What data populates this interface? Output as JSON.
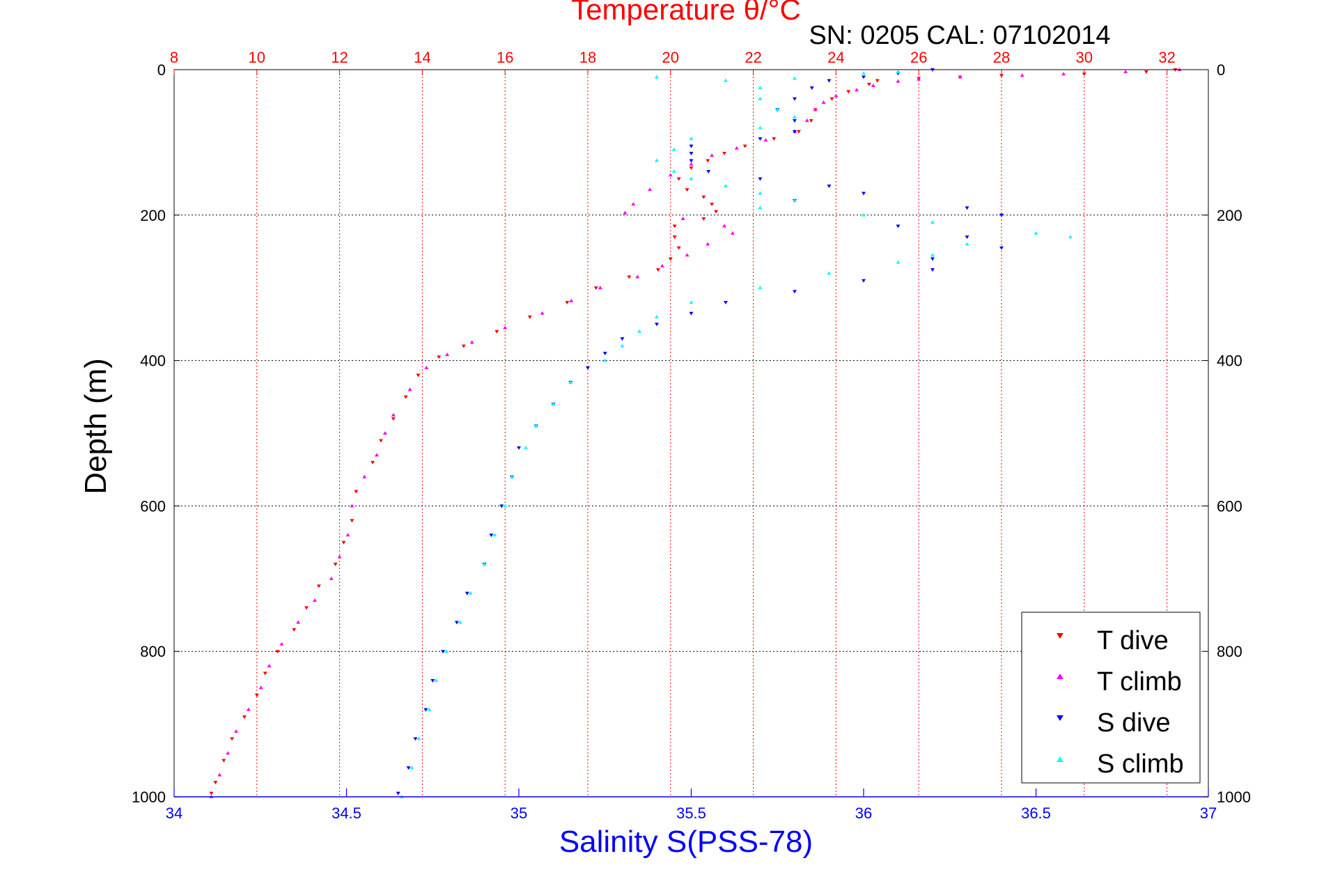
{
  "chart_data": {
    "type": "scatter",
    "title": "Temperature θ/°C",
    "subtitle": "SN: 0205  CAL: 07102014",
    "ylabel": "Depth (m)",
    "xlabel": "Salinity S(PSS-78)",
    "ylim": [
      0,
      1000
    ],
    "y_inverted": true,
    "y_ticks": [
      0,
      200,
      400,
      600,
      800,
      1000
    ],
    "temperature_axis": {
      "lim": [
        8,
        33
      ],
      "ticks": [
        8,
        10,
        12,
        14,
        16,
        18,
        20,
        22,
        24,
        26,
        28,
        30,
        32
      ],
      "grid": true,
      "color": "#ff0000"
    },
    "salinity_axis": {
      "lim": [
        34,
        37
      ],
      "ticks": [
        34,
        34.5,
        35,
        35.5,
        36,
        36.5,
        37
      ],
      "tick_labels": [
        "34",
        "34.5",
        "35",
        "35.5",
        "36",
        "36.5",
        "37"
      ],
      "color": "#0000ff"
    },
    "grid": true,
    "legend_position": "bottom-right",
    "series": [
      {
        "name": "T dive",
        "axis": "temperature",
        "color": "#ff0000",
        "marker": "down-triangle",
        "points": [
          [
            32.2,
            0
          ],
          [
            31.5,
            3
          ],
          [
            30,
            6
          ],
          [
            28,
            8
          ],
          [
            27,
            10
          ],
          [
            26,
            12
          ],
          [
            25,
            15
          ],
          [
            24.8,
            20
          ],
          [
            24.3,
            30
          ],
          [
            23.9,
            40
          ],
          [
            23.5,
            55
          ],
          [
            23.4,
            70
          ],
          [
            23.1,
            85
          ],
          [
            22.5,
            95
          ],
          [
            21.8,
            105
          ],
          [
            21.3,
            115
          ],
          [
            20.9,
            125
          ],
          [
            20.5,
            135
          ],
          [
            20.2,
            150
          ],
          [
            20.4,
            165
          ],
          [
            20.8,
            175
          ],
          [
            21.0,
            185
          ],
          [
            21.1,
            195
          ],
          [
            20.8,
            205
          ],
          [
            20.1,
            215
          ],
          [
            20.1,
            230
          ],
          [
            20.2,
            245
          ],
          [
            20.0,
            260
          ],
          [
            19.7,
            275
          ],
          [
            19,
            285
          ],
          [
            18.2,
            300
          ],
          [
            17.5,
            320
          ],
          [
            16.6,
            340
          ],
          [
            15.8,
            360
          ],
          [
            15.0,
            380
          ],
          [
            14.4,
            395
          ],
          [
            13.9,
            420
          ],
          [
            13.6,
            450
          ],
          [
            13.3,
            480
          ],
          [
            13.0,
            510
          ],
          [
            12.8,
            540
          ],
          [
            12.4,
            580
          ],
          [
            12.3,
            620
          ],
          [
            12.1,
            650
          ],
          [
            11.9,
            680
          ],
          [
            11.5,
            710
          ],
          [
            11.2,
            740
          ],
          [
            10.9,
            770
          ],
          [
            10.5,
            800
          ],
          [
            10.2,
            830
          ],
          [
            10.0,
            860
          ],
          [
            9.7,
            890
          ],
          [
            9.4,
            920
          ],
          [
            9.2,
            950
          ],
          [
            9.0,
            980
          ],
          [
            8.9,
            995
          ]
        ]
      },
      {
        "name": "T climb",
        "axis": "temperature",
        "color": "#ff00ff",
        "marker": "up-triangle",
        "points": [
          [
            32.3,
            0
          ],
          [
            31.0,
            3
          ],
          [
            29.5,
            6
          ],
          [
            28.5,
            8
          ],
          [
            27,
            10
          ],
          [
            26,
            13
          ],
          [
            25.5,
            16
          ],
          [
            24.9,
            22
          ],
          [
            24.5,
            28
          ],
          [
            24.0,
            36
          ],
          [
            23.7,
            45
          ],
          [
            23.5,
            55
          ],
          [
            23.3,
            70
          ],
          [
            23.0,
            85
          ],
          [
            22.3,
            97
          ],
          [
            21.6,
            108
          ],
          [
            21.0,
            118
          ],
          [
            20.5,
            130
          ],
          [
            20.0,
            145
          ],
          [
            19.5,
            165
          ],
          [
            19.1,
            185
          ],
          [
            18.9,
            197
          ],
          [
            20.3,
            205
          ],
          [
            21.3,
            215
          ],
          [
            21.5,
            225
          ],
          [
            20.9,
            240
          ],
          [
            20.4,
            255
          ],
          [
            19.8,
            270
          ],
          [
            19.2,
            285
          ],
          [
            18.3,
            300
          ],
          [
            17.6,
            318
          ],
          [
            16.9,
            335
          ],
          [
            16.0,
            355
          ],
          [
            15.2,
            375
          ],
          [
            14.6,
            392
          ],
          [
            14.1,
            410
          ],
          [
            13.7,
            440
          ],
          [
            13.3,
            475
          ],
          [
            13.1,
            500
          ],
          [
            12.9,
            530
          ],
          [
            12.6,
            560
          ],
          [
            12.3,
            600
          ],
          [
            12.2,
            640
          ],
          [
            12.0,
            670
          ],
          [
            11.8,
            700
          ],
          [
            11.4,
            730
          ],
          [
            11.0,
            760
          ],
          [
            10.6,
            790
          ],
          [
            10.3,
            820
          ],
          [
            10.1,
            850
          ],
          [
            9.8,
            880
          ],
          [
            9.5,
            910
          ],
          [
            9.3,
            940
          ],
          [
            9.1,
            970
          ],
          [
            8.9,
            1000
          ]
        ]
      },
      {
        "name": "S dive",
        "axis": "salinity",
        "color": "#0000ff",
        "marker": "down-triangle",
        "points": [
          [
            36.2,
            0
          ],
          [
            36.1,
            5
          ],
          [
            36.0,
            10
          ],
          [
            35.9,
            15
          ],
          [
            35.85,
            25
          ],
          [
            35.8,
            40
          ],
          [
            35.75,
            55
          ],
          [
            35.8,
            70
          ],
          [
            35.8,
            85
          ],
          [
            35.7,
            95
          ],
          [
            35.5,
            105
          ],
          [
            35.5,
            115
          ],
          [
            35.5,
            125
          ],
          [
            35.55,
            140
          ],
          [
            35.7,
            150
          ],
          [
            35.9,
            160
          ],
          [
            36.0,
            170
          ],
          [
            35.8,
            180
          ],
          [
            36.3,
            190
          ],
          [
            36.4,
            200
          ],
          [
            36.1,
            215
          ],
          [
            36.3,
            230
          ],
          [
            36.4,
            245
          ],
          [
            36.2,
            260
          ],
          [
            36.2,
            275
          ],
          [
            36.0,
            290
          ],
          [
            35.8,
            305
          ],
          [
            35.6,
            320
          ],
          [
            35.5,
            335
          ],
          [
            35.4,
            350
          ],
          [
            35.3,
            370
          ],
          [
            35.25,
            390
          ],
          [
            35.2,
            410
          ],
          [
            35.15,
            430
          ],
          [
            35.1,
            460
          ],
          [
            35.05,
            490
          ],
          [
            35.0,
            520
          ],
          [
            34.98,
            560
          ],
          [
            34.95,
            600
          ],
          [
            34.92,
            640
          ],
          [
            34.9,
            680
          ],
          [
            34.85,
            720
          ],
          [
            34.82,
            760
          ],
          [
            34.78,
            800
          ],
          [
            34.75,
            840
          ],
          [
            34.73,
            880
          ],
          [
            34.7,
            920
          ],
          [
            34.68,
            960
          ],
          [
            34.65,
            995
          ]
        ]
      },
      {
        "name": "S climb",
        "axis": "salinity",
        "color": "#00ffff",
        "marker": "up-triangle",
        "points": [
          [
            35.4,
            10
          ],
          [
            35.6,
            15
          ],
          [
            35.8,
            12
          ],
          [
            36.0,
            5
          ],
          [
            36.1,
            3
          ],
          [
            35.7,
            25
          ],
          [
            35.7,
            40
          ],
          [
            35.75,
            55
          ],
          [
            35.8,
            65
          ],
          [
            35.7,
            80
          ],
          [
            35.5,
            95
          ],
          [
            35.45,
            110
          ],
          [
            35.4,
            125
          ],
          [
            35.45,
            140
          ],
          [
            35.5,
            150
          ],
          [
            35.6,
            160
          ],
          [
            35.7,
            170
          ],
          [
            35.8,
            180
          ],
          [
            35.7,
            190
          ],
          [
            36.0,
            200
          ],
          [
            36.2,
            210
          ],
          [
            36.5,
            225
          ],
          [
            36.6,
            230
          ],
          [
            36.3,
            240
          ],
          [
            36.2,
            255
          ],
          [
            36.1,
            265
          ],
          [
            35.9,
            280
          ],
          [
            35.7,
            300
          ],
          [
            35.5,
            320
          ],
          [
            35.4,
            340
          ],
          [
            35.35,
            360
          ],
          [
            35.3,
            380
          ],
          [
            35.25,
            400
          ],
          [
            35.15,
            430
          ],
          [
            35.1,
            460
          ],
          [
            35.05,
            490
          ],
          [
            35.02,
            520
          ],
          [
            34.98,
            560
          ],
          [
            34.96,
            600
          ],
          [
            34.93,
            640
          ],
          [
            34.9,
            680
          ],
          [
            34.86,
            720
          ],
          [
            34.83,
            760
          ],
          [
            34.79,
            800
          ],
          [
            34.76,
            840
          ],
          [
            34.74,
            880
          ],
          [
            34.71,
            920
          ],
          [
            34.69,
            960
          ],
          [
            34.66,
            1000
          ]
        ]
      }
    ]
  }
}
